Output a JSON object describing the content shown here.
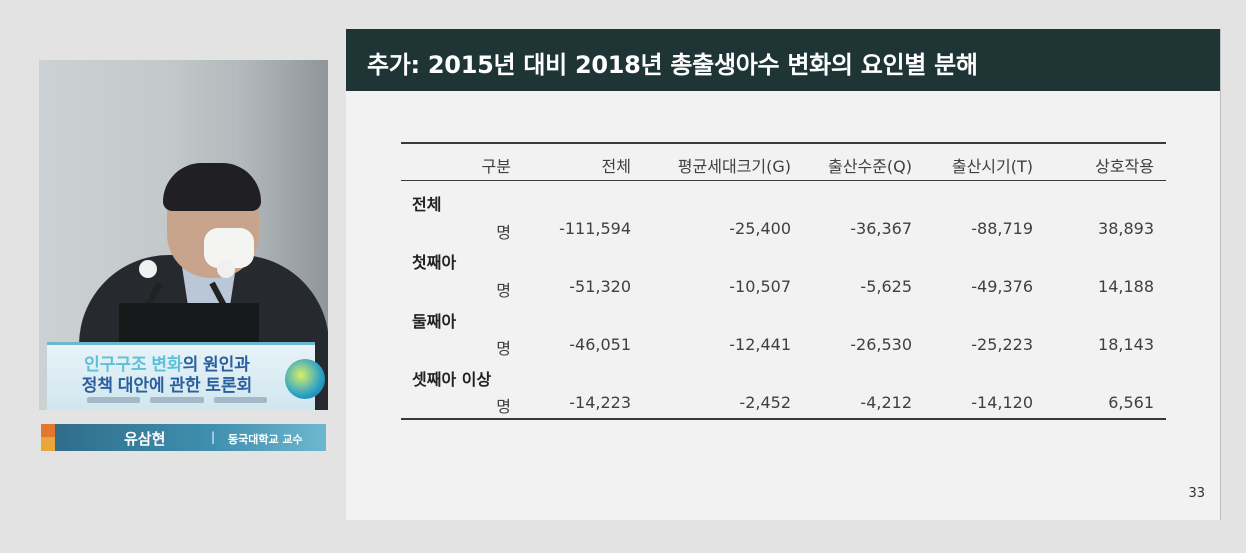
{
  "speaker": {
    "podium_line1_a": "인구구조 변화",
    "podium_line1_b": "의 원인과",
    "podium_line2_a": "정책 대안",
    "podium_line2_b": "에 관한 토론회",
    "name": "유삼현",
    "separator": "|",
    "affiliation": "동국대학교 교수"
  },
  "slide": {
    "title": "추가: 2015년 대비 2018년 총출생아수 변화의 요인별 분해",
    "page_number": "33",
    "table": {
      "headers": [
        "구분",
        "전체",
        "평균세대크기(G)",
        "출산수준(Q)",
        "출산시기(T)",
        "상호작용"
      ],
      "groups": [
        {
          "label": "전체",
          "unit": "명",
          "values": [
            "-111,594",
            "-25,400",
            "-36,367",
            "-88,719",
            "38,893"
          ]
        },
        {
          "label": "첫째아",
          "unit": "명",
          "values": [
            "-51,320",
            "-10,507",
            "-5,625",
            "-49,376",
            "14,188"
          ]
        },
        {
          "label": "둘째아",
          "unit": "명",
          "values": [
            "-46,051",
            "-12,441",
            "-26,530",
            "-25,223",
            "18,143"
          ]
        },
        {
          "label": "셋째아 이상",
          "unit": "명",
          "values": [
            "-14,223",
            "-2,452",
            "-4,212",
            "-14,120",
            "6,561"
          ]
        }
      ]
    }
  },
  "colors": {
    "title_bar": "#1f3535",
    "slide_bg": "#f2f2f2",
    "page_bg": "#e3e3e3",
    "caption_accent_orange": "#e2782e",
    "caption_teal": "#3f8fae"
  }
}
